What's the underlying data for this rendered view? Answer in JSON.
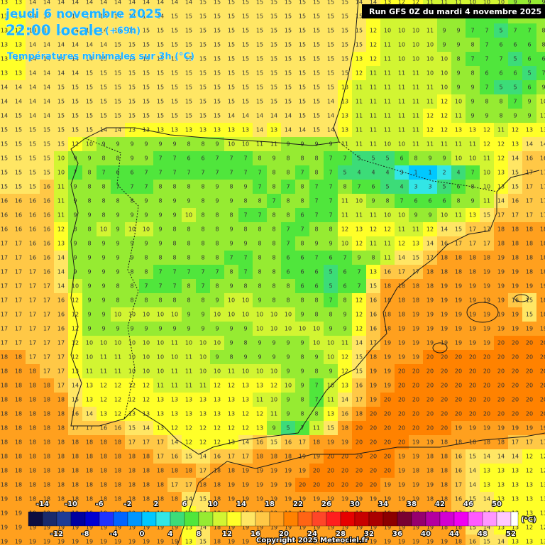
{
  "header": {
    "date": "jeudi 6 novembre 2025",
    "time": "22:00 locale",
    "offset": "(+69h)",
    "title": "Températures minimales sur 3h (°C)",
    "run": "Run GFS 0Z du mardi 4 novembre 2025"
  },
  "grid": {
    "rows": [
      [
        13,
        13,
        14,
        14,
        14,
        14,
        14,
        14,
        14,
        14,
        14,
        14,
        14,
        14,
        15,
        15,
        15,
        15,
        15,
        15,
        15,
        15,
        15,
        15,
        15,
        14,
        14,
        13,
        12,
        12,
        11,
        11,
        11,
        10,
        10,
        10,
        9,
        9,
        9
      ],
      [
        13,
        13,
        14,
        14,
        14,
        14,
        14,
        14,
        14,
        14,
        14,
        14,
        15,
        15,
        15,
        15,
        15,
        15,
        15,
        15,
        15,
        15,
        15,
        15,
        15,
        15,
        12,
        10,
        10,
        11,
        10,
        8,
        8,
        6,
        7,
        6,
        8,
        8,
        9
      ],
      [
        13,
        13,
        14,
        14,
        14,
        14,
        14,
        14,
        15,
        15,
        15,
        15,
        15,
        15,
        15,
        15,
        15,
        15,
        15,
        15,
        15,
        15,
        15,
        15,
        15,
        15,
        12,
        10,
        10,
        10,
        11,
        9,
        9,
        7,
        7,
        5,
        7,
        7,
        8
      ],
      [
        13,
        13,
        14,
        14,
        14,
        14,
        14,
        14,
        15,
        15,
        15,
        15,
        15,
        15,
        15,
        15,
        15,
        15,
        15,
        15,
        15,
        15,
        15,
        15,
        15,
        15,
        12,
        11,
        10,
        10,
        10,
        9,
        9,
        8,
        7,
        6,
        6,
        6,
        8
      ],
      [
        13,
        13,
        14,
        14,
        14,
        14,
        14,
        15,
        15,
        15,
        15,
        15,
        15,
        15,
        15,
        15,
        15,
        15,
        15,
        15,
        15,
        15,
        15,
        15,
        15,
        13,
        12,
        11,
        10,
        10,
        10,
        10,
        8,
        7,
        7,
        7,
        5,
        6,
        6
      ],
      [
        13,
        13,
        14,
        14,
        14,
        14,
        15,
        15,
        15,
        15,
        15,
        15,
        15,
        15,
        15,
        15,
        15,
        15,
        15,
        15,
        15,
        15,
        15,
        15,
        15,
        12,
        11,
        11,
        11,
        11,
        10,
        10,
        9,
        8,
        6,
        6,
        6,
        5,
        7
      ],
      [
        14,
        14,
        14,
        14,
        15,
        15,
        15,
        15,
        15,
        15,
        15,
        15,
        15,
        15,
        15,
        15,
        15,
        15,
        15,
        15,
        15,
        15,
        15,
        15,
        13,
        11,
        11,
        11,
        11,
        11,
        11,
        10,
        9,
        9,
        7,
        5,
        5,
        6,
        9
      ],
      [
        14,
        14,
        14,
        14,
        15,
        15,
        15,
        15,
        15,
        15,
        15,
        15,
        15,
        15,
        15,
        15,
        15,
        15,
        15,
        15,
        15,
        15,
        15,
        14,
        13,
        11,
        11,
        11,
        11,
        11,
        11,
        12,
        10,
        9,
        8,
        8,
        7,
        9,
        10
      ],
      [
        14,
        15,
        14,
        14,
        15,
        15,
        15,
        15,
        15,
        15,
        15,
        15,
        15,
        15,
        15,
        15,
        14,
        14,
        14,
        14,
        14,
        15,
        15,
        14,
        13,
        11,
        11,
        11,
        11,
        11,
        12,
        12,
        11,
        9,
        9,
        8,
        9,
        9,
        11
      ],
      [
        15,
        15,
        15,
        15,
        15,
        15,
        15,
        14,
        14,
        13,
        13,
        13,
        13,
        13,
        13,
        13,
        13,
        13,
        14,
        13,
        14,
        14,
        15,
        14,
        13,
        11,
        11,
        11,
        11,
        11,
        12,
        12,
        13,
        13,
        12,
        11,
        12,
        13,
        13
      ],
      [
        15,
        15,
        15,
        15,
        15,
        12,
        10,
        9,
        9,
        9,
        9,
        9,
        9,
        8,
        8,
        9,
        10,
        10,
        11,
        11,
        9,
        9,
        9,
        9,
        11,
        11,
        11,
        10,
        10,
        11,
        11,
        11,
        11,
        11,
        12,
        12,
        13,
        14,
        14
      ],
      [
        15,
        15,
        15,
        15,
        10,
        9,
        9,
        8,
        8,
        9,
        9,
        7,
        7,
        6,
        6,
        7,
        7,
        7,
        8,
        9,
        8,
        8,
        8,
        7,
        7,
        5,
        5,
        5,
        6,
        8,
        9,
        9,
        10,
        10,
        11,
        12,
        14,
        16,
        16
      ],
      [
        15,
        15,
        15,
        15,
        10,
        7,
        8,
        7,
        6,
        6,
        7,
        7,
        7,
        7,
        7,
        7,
        7,
        7,
        7,
        8,
        8,
        7,
        8,
        7,
        5,
        4,
        4,
        4,
        3,
        1,
        1,
        2,
        4,
        7,
        10,
        13,
        15,
        17,
        17
      ],
      [
        15,
        15,
        15,
        16,
        11,
        9,
        8,
        8,
        7,
        7,
        7,
        8,
        8,
        8,
        8,
        9,
        8,
        9,
        7,
        8,
        7,
        8,
        7,
        7,
        8,
        7,
        6,
        5,
        4,
        3,
        3,
        5,
        6,
        8,
        10,
        13,
        15,
        17,
        17
      ],
      [
        16,
        16,
        16,
        16,
        11,
        9,
        8,
        8,
        8,
        8,
        9,
        8,
        9,
        9,
        8,
        9,
        9,
        8,
        8,
        7,
        8,
        8,
        7,
        7,
        11,
        10,
        9,
        8,
        7,
        6,
        6,
        6,
        8,
        9,
        11,
        14,
        16,
        17,
        17
      ],
      [
        16,
        16,
        16,
        16,
        11,
        9,
        9,
        8,
        9,
        9,
        9,
        9,
        9,
        10,
        8,
        8,
        8,
        7,
        7,
        8,
        8,
        6,
        7,
        7,
        11,
        11,
        11,
        10,
        10,
        9,
        9,
        10,
        11,
        13,
        15,
        17,
        17,
        17,
        17
      ],
      [
        16,
        16,
        16,
        16,
        12,
        8,
        8,
        10,
        9,
        10,
        10,
        9,
        8,
        8,
        8,
        8,
        9,
        8,
        8,
        8,
        7,
        7,
        8,
        8,
        12,
        13,
        12,
        12,
        11,
        11,
        12,
        14,
        15,
        17,
        17,
        18,
        18,
        18,
        18
      ],
      [
        17,
        17,
        16,
        16,
        13,
        9,
        8,
        9,
        9,
        9,
        9,
        9,
        8,
        8,
        8,
        8,
        9,
        9,
        8,
        8,
        7,
        8,
        9,
        9,
        10,
        12,
        11,
        11,
        12,
        13,
        14,
        16,
        17,
        17,
        17,
        18,
        18,
        18,
        18
      ],
      [
        17,
        17,
        16,
        16,
        14,
        9,
        9,
        9,
        9,
        9,
        8,
        8,
        8,
        8,
        8,
        8,
        7,
        7,
        8,
        8,
        6,
        6,
        7,
        6,
        7,
        9,
        8,
        11,
        14,
        15,
        17,
        18,
        18,
        18,
        18,
        19,
        18,
        18,
        18
      ],
      [
        17,
        17,
        17,
        16,
        14,
        9,
        9,
        9,
        9,
        8,
        8,
        7,
        7,
        7,
        7,
        7,
        8,
        7,
        8,
        8,
        6,
        6,
        6,
        5,
        6,
        7,
        13,
        16,
        17,
        17,
        18,
        18,
        18,
        18,
        19,
        19,
        19,
        18,
        18
      ],
      [
        17,
        17,
        17,
        17,
        14,
        10,
        9,
        9,
        8,
        8,
        7,
        7,
        7,
        8,
        7,
        8,
        9,
        8,
        8,
        8,
        8,
        6,
        6,
        5,
        6,
        7,
        15,
        18,
        18,
        18,
        18,
        19,
        19,
        19,
        19,
        19,
        19,
        19,
        19
      ],
      [
        17,
        17,
        17,
        17,
        16,
        12,
        9,
        9,
        8,
        8,
        8,
        8,
        8,
        8,
        8,
        9,
        10,
        10,
        9,
        8,
        8,
        8,
        8,
        7,
        8,
        12,
        16,
        18,
        18,
        18,
        19,
        19,
        19,
        19,
        19,
        19,
        16,
        15,
        18
      ],
      [
        17,
        17,
        17,
        17,
        16,
        12,
        9,
        9,
        10,
        10,
        10,
        10,
        10,
        9,
        9,
        10,
        10,
        10,
        10,
        10,
        10,
        9,
        8,
        8,
        9,
        12,
        16,
        18,
        18,
        19,
        19,
        19,
        19,
        19,
        19,
        19,
        19,
        15,
        18
      ],
      [
        17,
        17,
        17,
        17,
        16,
        12,
        9,
        9,
        9,
        9,
        9,
        9,
        9,
        9,
        9,
        9,
        9,
        9,
        10,
        10,
        10,
        10,
        10,
        9,
        9,
        12,
        16,
        18,
        19,
        19,
        19,
        19,
        19,
        19,
        19,
        19,
        19,
        19,
        19
      ],
      [
        17,
        17,
        17,
        17,
        17,
        12,
        10,
        10,
        10,
        10,
        10,
        10,
        11,
        10,
        10,
        10,
        9,
        8,
        9,
        9,
        9,
        9,
        10,
        10,
        11,
        14,
        17,
        19,
        19,
        19,
        19,
        19,
        19,
        19,
        19,
        20,
        20,
        20,
        20
      ],
      [
        18,
        18,
        17,
        17,
        17,
        12,
        10,
        11,
        11,
        10,
        10,
        10,
        10,
        11,
        10,
        9,
        8,
        9,
        9,
        9,
        9,
        8,
        9,
        10,
        12,
        15,
        18,
        19,
        19,
        19,
        20,
        20,
        20,
        20,
        20,
        20,
        20,
        20,
        20
      ],
      [
        18,
        18,
        18,
        17,
        17,
        13,
        11,
        11,
        11,
        10,
        10,
        10,
        11,
        11,
        10,
        10,
        11,
        10,
        10,
        10,
        9,
        9,
        8,
        9,
        12,
        15,
        19,
        19,
        20,
        20,
        20,
        20,
        20,
        20,
        20,
        20,
        20,
        20,
        20
      ],
      [
        18,
        18,
        18,
        18,
        17,
        14,
        13,
        12,
        12,
        12,
        12,
        11,
        11,
        11,
        11,
        12,
        12,
        13,
        13,
        12,
        10,
        9,
        7,
        10,
        13,
        16,
        19,
        19,
        20,
        20,
        20,
        20,
        20,
        20,
        20,
        20,
        20,
        20,
        20
      ],
      [
        18,
        18,
        18,
        18,
        18,
        15,
        13,
        12,
        12,
        12,
        12,
        13,
        13,
        13,
        13,
        13,
        13,
        13,
        11,
        10,
        9,
        8,
        7,
        11,
        14,
        17,
        19,
        20,
        20,
        20,
        20,
        20,
        20,
        20,
        20,
        20,
        20,
        20,
        20
      ],
      [
        18,
        18,
        18,
        18,
        18,
        16,
        14,
        13,
        12,
        13,
        13,
        13,
        13,
        13,
        13,
        13,
        13,
        12,
        12,
        11,
        9,
        8,
        8,
        13,
        16,
        18,
        20,
        20,
        20,
        20,
        20,
        20,
        20,
        20,
        20,
        20,
        20,
        20,
        20
      ],
      [
        18,
        18,
        18,
        18,
        18,
        17,
        17,
        16,
        16,
        15,
        14,
        13,
        12,
        12,
        12,
        12,
        12,
        12,
        13,
        9,
        5,
        7,
        11,
        15,
        18,
        20,
        20,
        20,
        20,
        20,
        20,
        20,
        19,
        19,
        19,
        19,
        19,
        19,
        19
      ],
      [
        18,
        18,
        18,
        18,
        18,
        18,
        18,
        18,
        18,
        17,
        17,
        17,
        14,
        12,
        12,
        12,
        13,
        14,
        16,
        15,
        16,
        17,
        18,
        19,
        19,
        20,
        20,
        20,
        20,
        19,
        19,
        18,
        18,
        18,
        18,
        18,
        17,
        17,
        17
      ],
      [
        18,
        18,
        18,
        18,
        18,
        18,
        18,
        18,
        18,
        18,
        18,
        17,
        16,
        15,
        14,
        16,
        17,
        17,
        18,
        18,
        18,
        19,
        19,
        20,
        20,
        20,
        20,
        20,
        19,
        19,
        18,
        18,
        16,
        15,
        14,
        14,
        14,
        12,
        12
      ],
      [
        18,
        18,
        18,
        18,
        18,
        18,
        18,
        18,
        18,
        18,
        18,
        18,
        18,
        18,
        17,
        18,
        18,
        19,
        19,
        19,
        19,
        19,
        20,
        20,
        20,
        20,
        20,
        20,
        19,
        18,
        18,
        18,
        16,
        14,
        13,
        13,
        13,
        12,
        12
      ],
      [
        18,
        18,
        18,
        18,
        18,
        18,
        18,
        18,
        18,
        18,
        18,
        18,
        17,
        17,
        18,
        18,
        19,
        19,
        19,
        19,
        19,
        20,
        20,
        20,
        20,
        20,
        20,
        19,
        19,
        19,
        19,
        18,
        17,
        14,
        13,
        13,
        13,
        13,
        13
      ],
      [
        19,
        18,
        18,
        18,
        18,
        18,
        18,
        18,
        18,
        18,
        18,
        18,
        18,
        14,
        15,
        18,
        19,
        19,
        19,
        19,
        19,
        19,
        19,
        19,
        19,
        19,
        19,
        19,
        19,
        19,
        18,
        18,
        16,
        15,
        14,
        13,
        13,
        13,
        13
      ],
      [
        19,
        19,
        19,
        19,
        19,
        19,
        19,
        19,
        19,
        19,
        19,
        19,
        19,
        13,
        14,
        18,
        19,
        19,
        19,
        19,
        19,
        19,
        19,
        19,
        19,
        19,
        19,
        19,
        19,
        19,
        19,
        18,
        17,
        15,
        14,
        13,
        13,
        13,
        13
      ],
      [
        19,
        19,
        19,
        19,
        19,
        19,
        19,
        19,
        19,
        19,
        19,
        19,
        19,
        13,
        14,
        18,
        19,
        19,
        19,
        19,
        19,
        19,
        19,
        19,
        19,
        19,
        19,
        19,
        19,
        19,
        19,
        18,
        18,
        15,
        14,
        13,
        13,
        12,
        12
      ],
      [
        19,
        19,
        19,
        19,
        19,
        19,
        19,
        19,
        19,
        19,
        19,
        19,
        19,
        13,
        15,
        18,
        19,
        19,
        19,
        19,
        19,
        19,
        19,
        19,
        19,
        19,
        19,
        19,
        19,
        19,
        19,
        19,
        18,
        16,
        15,
        14,
        13,
        13,
        13
      ]
    ]
  },
  "colorbar": {
    "ticks": [
      -14,
      -12,
      -10,
      -8,
      -6,
      -4,
      -2,
      0,
      2,
      4,
      6,
      8,
      10,
      12,
      14,
      16,
      18,
      20,
      22,
      24,
      26,
      28,
      30,
      32,
      34,
      36,
      38,
      40,
      42,
      44,
      46,
      48,
      50,
      52
    ],
    "colors": [
      "#0d0d40",
      "#1a2a6c",
      "#1e3c96",
      "#0000a0",
      "#0000d2",
      "#1e32ff",
      "#0064ff",
      "#0096ff",
      "#00c8ff",
      "#32e6e6",
      "#3cdc78",
      "#50e63c",
      "#96eb32",
      "#d2f532",
      "#ffff28",
      "#ffe664",
      "#ffc846",
      "#ffa01e",
      "#ff8200",
      "#ff6414",
      "#ff4628",
      "#ff1e1e",
      "#e60000",
      "#c80000",
      "#aa0000",
      "#8c0000",
      "#780032",
      "#96006e",
      "#b400a0",
      "#d200d2",
      "#f000f0",
      "#ff5aff",
      "#ff96ff",
      "#ffc8ff",
      "#ffffff"
    ],
    "unit": "(°C)"
  },
  "footer": {
    "copyright": "Copyright 2025 Meteociel.fr"
  }
}
